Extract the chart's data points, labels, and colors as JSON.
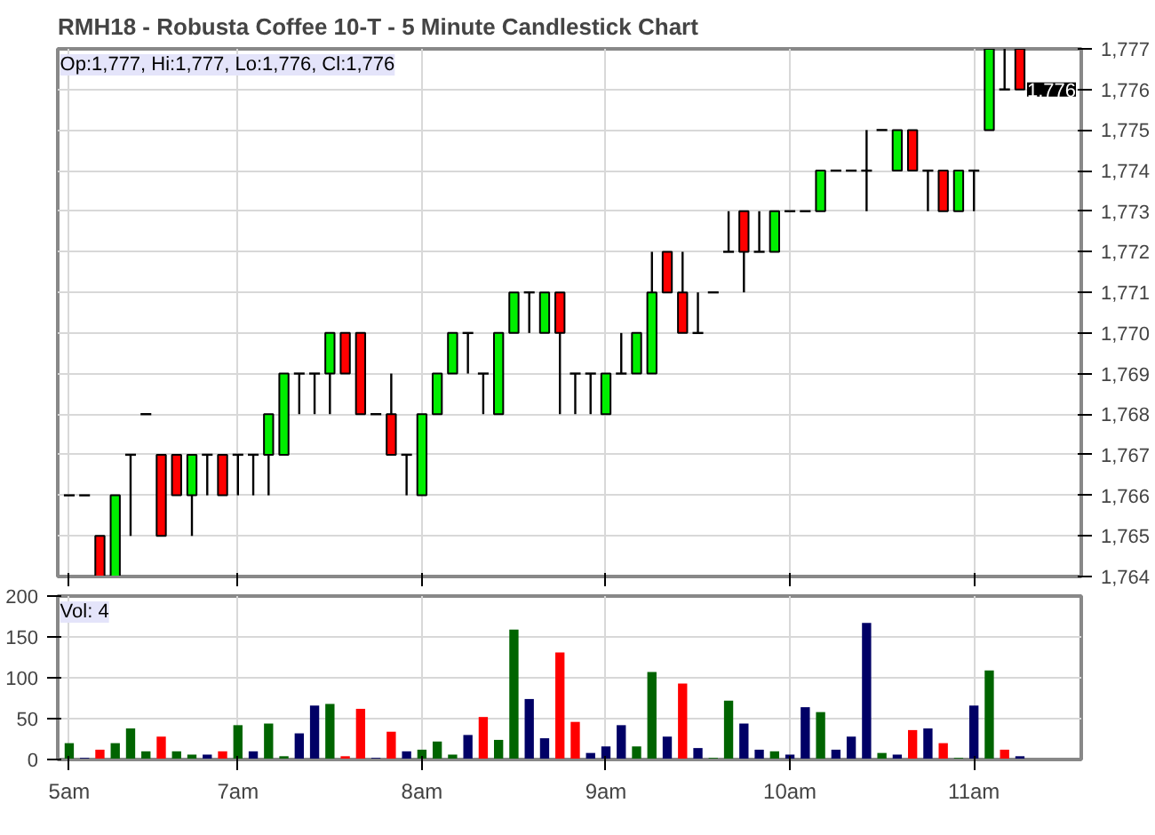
{
  "chart_data": [
    {
      "type": "candlestick",
      "title": "RMH18 - Robusta Coffee 10-T - 5 Minute Candlestick Chart",
      "categories": [
        null,
        null,
        null,
        null,
        null,
        null,
        null,
        null,
        null,
        null,
        null,
        null,
        null,
        null,
        null,
        null,
        null,
        null,
        null,
        null,
        null,
        null,
        null,
        null,
        null,
        null,
        null,
        null,
        null,
        null,
        null,
        null,
        null,
        null,
        null,
        null,
        null,
        null,
        null,
        null,
        null,
        null,
        null,
        null,
        null,
        null,
        null,
        null,
        null,
        null,
        null,
        null,
        null,
        null,
        null,
        null,
        null,
        null,
        null,
        null,
        null,
        null,
        null
      ],
      "ohlc": [
        [
          1766,
          1766,
          1766,
          1766
        ],
        [
          1766,
          1766,
          1766,
          1766
        ],
        [
          1765,
          1765,
          1764,
          1764
        ],
        [
          1764,
          1766,
          1764,
          1766
        ],
        [
          1767,
          1767,
          1765,
          1767
        ],
        [
          1768,
          1768,
          1768,
          1768
        ],
        [
          1767,
          1767,
          1765,
          1765
        ],
        [
          1767,
          1767,
          1766,
          1766
        ],
        [
          1766,
          1767,
          1765,
          1767
        ],
        [
          1767,
          1767,
          1766,
          1767
        ],
        [
          1767,
          1767,
          1766,
          1766
        ],
        [
          1767,
          1767,
          1766,
          1767
        ],
        [
          1767,
          1767,
          1766,
          1767
        ],
        [
          1767,
          1768,
          1766,
          1768
        ],
        [
          1767,
          1769,
          1767,
          1769
        ],
        [
          1769,
          1769,
          1768,
          1769
        ],
        [
          1769,
          1769,
          1768,
          1769
        ],
        [
          1769,
          1770,
          1768,
          1770
        ],
        [
          1770,
          1770,
          1769,
          1769
        ],
        [
          1770,
          1770,
          1768,
          1768
        ],
        [
          1768,
          1768,
          1768,
          1768
        ],
        [
          1768,
          1769,
          1767,
          1767
        ],
        [
          1767,
          1767,
          1766,
          1767
        ],
        [
          1766,
          1768,
          1766,
          1768
        ],
        [
          1768,
          1769,
          1768,
          1769
        ],
        [
          1769,
          1770,
          1769,
          1770
        ],
        [
          1770,
          1770,
          1769,
          1770
        ],
        [
          1769,
          1769,
          1768,
          1769
        ],
        [
          1768,
          1770,
          1768,
          1770
        ],
        [
          1770,
          1771,
          1770,
          1771
        ],
        [
          1771,
          1771,
          1770,
          1771
        ],
        [
          1770,
          1771,
          1770,
          1771
        ],
        [
          1771,
          1771,
          1768,
          1770
        ],
        [
          1769,
          1769,
          1768,
          1769
        ],
        [
          1769,
          1769,
          1768,
          1769
        ],
        [
          1768,
          1769,
          1768,
          1769
        ],
        [
          1769,
          1770,
          1769,
          1769
        ],
        [
          1769,
          1770,
          1769,
          1770
        ],
        [
          1769,
          1772,
          1769,
          1771
        ],
        [
          1772,
          1772,
          1771,
          1771
        ],
        [
          1771,
          1772,
          1770,
          1770
        ],
        [
          1770,
          1771,
          1770,
          1770
        ],
        [
          1771,
          1771,
          1771,
          1771
        ],
        [
          1772,
          1773,
          1772,
          1772
        ],
        [
          1773,
          1773,
          1771,
          1772
        ],
        [
          1772,
          1773,
          1772,
          1772
        ],
        [
          1772,
          1773,
          1772,
          1773
        ],
        [
          1773,
          1773,
          1773,
          1773
        ],
        [
          1773,
          1773,
          1773,
          1773
        ],
        [
          1773,
          1774,
          1773,
          1774
        ],
        [
          1774,
          1774,
          1774,
          1774
        ],
        [
          1774,
          1774,
          1774,
          1774
        ],
        [
          1774,
          1775,
          1773,
          1774
        ],
        [
          1775,
          1775,
          1775,
          1775
        ],
        [
          1774,
          1775,
          1774,
          1775
        ],
        [
          1775,
          1775,
          1774,
          1774
        ],
        [
          1774,
          1774,
          1773,
          1774
        ],
        [
          1774,
          1774,
          1773,
          1773
        ],
        [
          1773,
          1774,
          1773,
          1774
        ],
        [
          1774,
          1774,
          1773,
          1774
        ],
        [
          1775,
          1777,
          1775,
          1777
        ],
        [
          1776,
          1777,
          1776,
          1776
        ],
        [
          1777,
          1777,
          1776,
          1776
        ]
      ],
      "colors": [
        "#000000",
        "#000000",
        "#ff0000",
        "#00ee00",
        "#000000",
        "#000000",
        "#ff0000",
        "#ff0000",
        "#00ee00",
        "#000000",
        "#ff0000",
        "#000000",
        "#000000",
        "#00ee00",
        "#00ee00",
        "#000000",
        "#000000",
        "#00ee00",
        "#ff0000",
        "#ff0000",
        "#000000",
        "#ff0000",
        "#000000",
        "#00ee00",
        "#00ee00",
        "#00ee00",
        "#000000",
        "#000000",
        "#00ee00",
        "#00ee00",
        "#000000",
        "#00ee00",
        "#ff0000",
        "#000000",
        "#000000",
        "#00ee00",
        "#000000",
        "#00ee00",
        "#00ee00",
        "#ff0000",
        "#ff0000",
        "#000000",
        "#000000",
        "#000000",
        "#ff0000",
        "#000000",
        "#00ee00",
        "#000000",
        "#000000",
        "#00ee00",
        "#000000",
        "#000000",
        "#000000",
        "#000000",
        "#00ee00",
        "#ff0000",
        "#000000",
        "#ff0000",
        "#00ee00",
        "#000000",
        "#00ee00",
        "#000000",
        "#ff0000"
      ],
      "ylim": [
        1764,
        1777
      ],
      "yticks": [
        {
          "value": 1764,
          "label": "1,764"
        },
        {
          "value": 1765,
          "label": "1,765"
        },
        {
          "value": 1766,
          "label": "1,766"
        },
        {
          "value": 1767,
          "label": "1,767"
        },
        {
          "value": 1768,
          "label": "1,768"
        },
        {
          "value": 1769,
          "label": "1,769"
        },
        {
          "value": 1770,
          "label": "1,770"
        },
        {
          "value": 1771,
          "label": "1,771"
        },
        {
          "value": 1772,
          "label": "1,772"
        },
        {
          "value": 1773,
          "label": "1,773"
        },
        {
          "value": 1774,
          "label": "1,774"
        },
        {
          "value": 1775,
          "label": "1,775"
        },
        {
          "value": 1776,
          "label": "1,776"
        },
        {
          "value": 1777,
          "label": "1,777"
        }
      ],
      "annotations": [
        "Op:1,777, Hi:1,777, Lo:1,776, Cl:1,776",
        "1,776"
      ],
      "grid": true,
      "tick_labels": "y"
    },
    {
      "type": "bar",
      "categories": [
        "5am",
        null,
        null,
        null,
        null,
        null,
        null,
        null,
        null,
        null,
        null,
        "7am",
        null,
        null,
        null,
        null,
        null,
        null,
        null,
        null,
        null,
        null,
        null,
        "8am",
        null,
        null,
        null,
        null,
        null,
        null,
        null,
        null,
        null,
        null,
        null,
        "9am",
        null,
        null,
        null,
        null,
        null,
        null,
        null,
        null,
        null,
        null,
        null,
        "10am",
        null,
        null,
        null,
        null,
        null,
        null,
        null,
        null,
        null,
        null,
        null,
        "11am",
        null,
        null,
        null
      ],
      "values": [
        20,
        2,
        12,
        20,
        38,
        10,
        28,
        10,
        6,
        6,
        10,
        42,
        10,
        44,
        4,
        32,
        66,
        68,
        4,
        62,
        2,
        34,
        10,
        12,
        22,
        6,
        30,
        52,
        24,
        159,
        74,
        26,
        131,
        46,
        8,
        16,
        42,
        16,
        107,
        28,
        93,
        14,
        2,
        72,
        44,
        12,
        10,
        6,
        64,
        58,
        12,
        28,
        167,
        8,
        6,
        36,
        38,
        20,
        2,
        66,
        109,
        12,
        4
      ],
      "colors": [
        "#006400",
        "#000066",
        "#ff0000",
        "#006400",
        "#006400",
        "#006400",
        "#ff0000",
        "#006400",
        "#006400",
        "#000066",
        "#ff0000",
        "#006400",
        "#000066",
        "#006400",
        "#006400",
        "#000066",
        "#000066",
        "#006400",
        "#ff0000",
        "#ff0000",
        "#000066",
        "#ff0000",
        "#000066",
        "#006400",
        "#006400",
        "#006400",
        "#000066",
        "#ff0000",
        "#006400",
        "#006400",
        "#000066",
        "#000066",
        "#ff0000",
        "#ff0000",
        "#000066",
        "#000066",
        "#000066",
        "#006400",
        "#006400",
        "#000066",
        "#ff0000",
        "#000066",
        "#006400",
        "#006400",
        "#000066",
        "#000066",
        "#006400",
        "#000066",
        "#000066",
        "#006400",
        "#000066",
        "#000066",
        "#000066",
        "#006400",
        "#000066",
        "#ff0000",
        "#000066",
        "#ff0000",
        "#006400",
        "#000066",
        "#006400",
        "#ff0000",
        "#000066"
      ],
      "ylim": [
        0,
        200
      ],
      "yticks": [
        0,
        50,
        100,
        150,
        200
      ],
      "annotations": [
        "Vol: 4"
      ],
      "grid": true
    }
  ]
}
